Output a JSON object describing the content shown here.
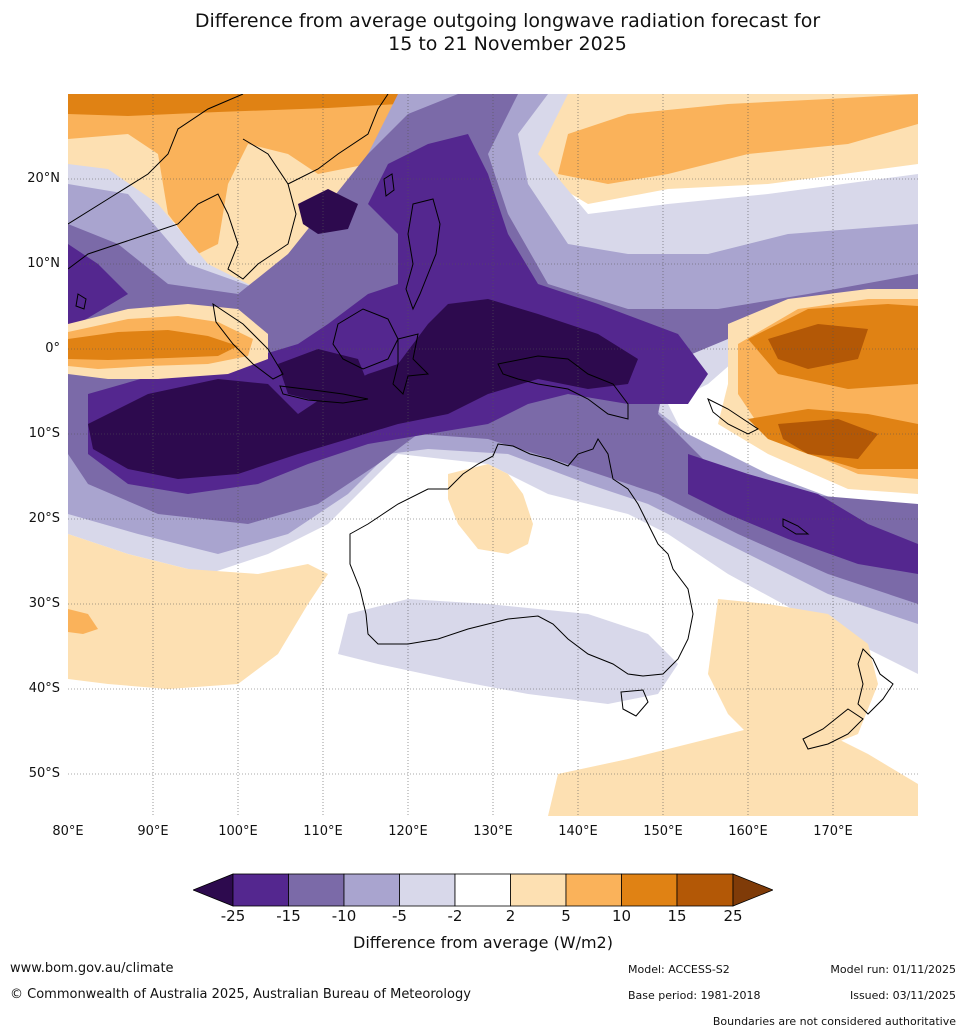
{
  "title": {
    "line1": "Difference from average outgoing longwave radiation forecast for",
    "line2": "15 to 21 November 2025"
  },
  "map": {
    "lat_labels": [
      "20°N",
      "10°N",
      "0°",
      "10°S",
      "20°S",
      "30°S",
      "40°S",
      "50°S"
    ],
    "lon_labels": [
      "80°E",
      "90°E",
      "100°E",
      "110°E",
      "120°E",
      "130°E",
      "140°E",
      "150°E",
      "160°E",
      "170°E"
    ],
    "lat_values": [
      20,
      10,
      0,
      -10,
      -20,
      -30,
      -40,
      -50
    ],
    "lon_values": [
      80,
      90,
      100,
      110,
      120,
      130,
      140,
      150,
      160,
      170
    ],
    "extent": {
      "lon_min": 80,
      "lon_max": 180,
      "lat_min": -55,
      "lat_max": 30
    }
  },
  "legend": {
    "ticks": [
      "-25",
      "-15",
      "-10",
      "-5",
      "-2",
      "2",
      "5",
      "10",
      "15",
      "25"
    ],
    "colors": [
      "#2d0a4e",
      "#54278f",
      "#7b6aa8",
      "#a9a4cf",
      "#d8d8ea",
      "#ffffff",
      "#fde0b2",
      "#fab25a",
      "#e08214",
      "#b35806",
      "#7f3b08"
    ],
    "label": "Difference from average (W/m2)"
  },
  "footer": {
    "website": "www.bom.gov.au/climate",
    "copyright": "© Commonwealth of Australia 2025, Australian Bureau of Meteorology",
    "model": "Model: ACCESS-S2",
    "base_period": "Base period: 1981-2018",
    "model_run": "Model run: 01/11/2025",
    "issued": "Issued: 03/11/2025",
    "disclaimer": "Boundaries are not considered authoritative"
  }
}
